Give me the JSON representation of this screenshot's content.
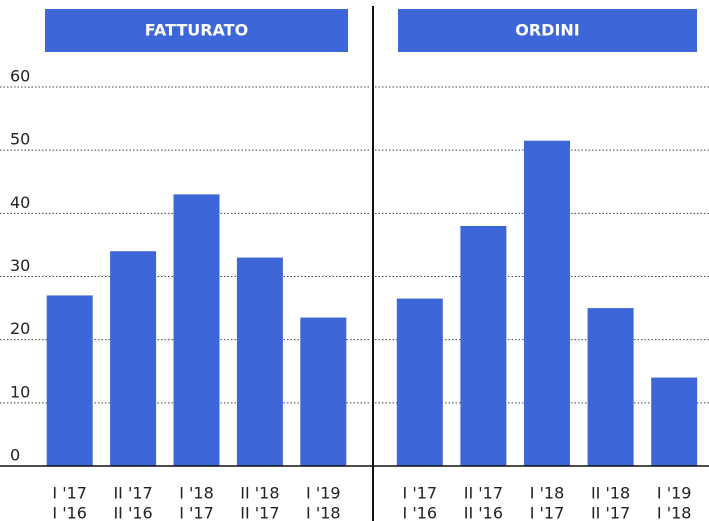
{
  "chart_data": [
    {
      "type": "bar",
      "title": "FATTURATO",
      "categories": [
        [
          "I '17",
          "I '16"
        ],
        [
          "II '17",
          "II '16"
        ],
        [
          "I '18",
          "I '17"
        ],
        [
          "II '18",
          "II '17"
        ],
        [
          "I '19",
          "I '18"
        ]
      ],
      "values": [
        27,
        34,
        43,
        33,
        23.5
      ],
      "color": "#3d66d8",
      "ylim": [
        0,
        60
      ],
      "yticks": [
        0,
        10,
        20,
        30,
        40,
        50,
        60
      ],
      "grid": true
    },
    {
      "type": "bar",
      "title": "ORDINI",
      "categories": [
        [
          "I '17",
          "I '16"
        ],
        [
          "II '17",
          "II '16"
        ],
        [
          "I '18",
          "I '17"
        ],
        [
          "II '18",
          "II '17"
        ],
        [
          "I '19",
          "I '18"
        ]
      ],
      "values": [
        26.5,
        38,
        51.5,
        25,
        14
      ],
      "color": "#3d66d8",
      "ylim": [
        0,
        60
      ],
      "yticks": [
        0,
        10,
        20,
        30,
        40,
        50,
        60
      ],
      "grid": true
    }
  ]
}
